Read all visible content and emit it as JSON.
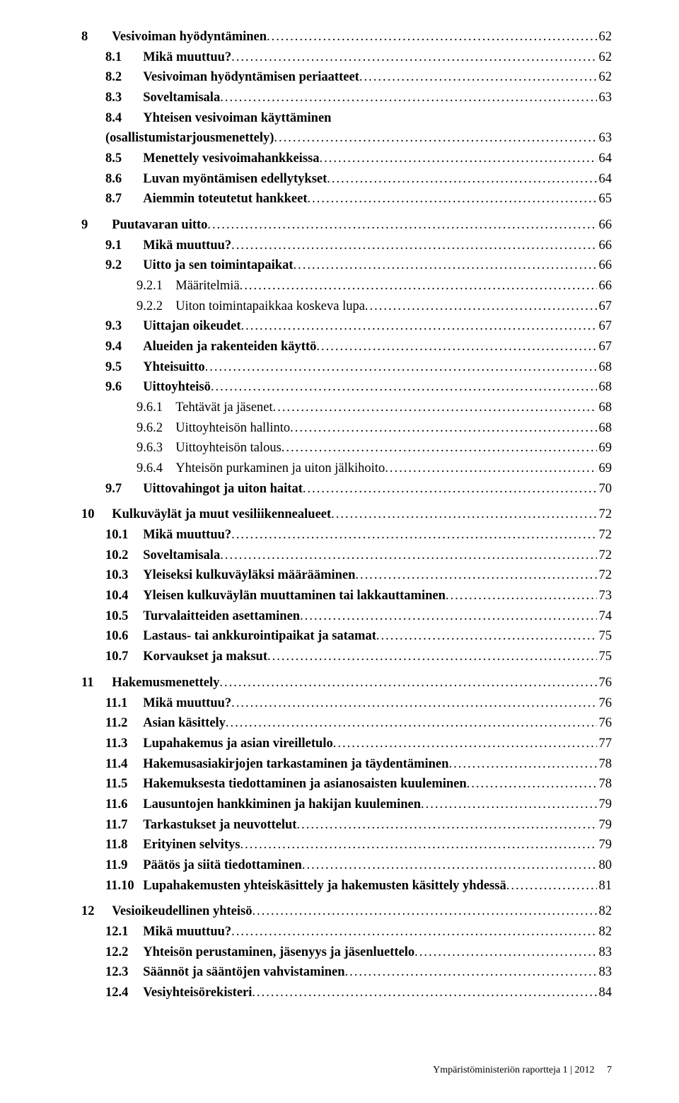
{
  "colors": {
    "text": "#000000",
    "background": "#ffffff"
  },
  "typography": {
    "font_family": "Palatino / Book Antiqua (serif)",
    "body_size_pt": 14,
    "footer_size_pt": 10
  },
  "leader_char": ".",
  "toc": [
    {
      "level": 1,
      "num": "8",
      "title": "Vesivoiman hyödyntäminen",
      "page": "62",
      "first": true
    },
    {
      "level": 2,
      "num": "8.1",
      "title": "Mikä muuttuu?",
      "page": "62"
    },
    {
      "level": 2,
      "num": "8.2",
      "title": "Vesivoiman hyödyntämisen periaatteet",
      "page": "62"
    },
    {
      "level": 2,
      "num": "8.3",
      "title": "Soveltamisala",
      "page": "63"
    },
    {
      "level": 2,
      "num": "8.4",
      "title": "Yhteisen vesivoiman käyttäminen",
      "page": ""
    },
    {
      "level": "cont",
      "num": "",
      "title": "(osallistumistarjousmenettely)",
      "page": "63"
    },
    {
      "level": 2,
      "num": "8.5",
      "title": "Menettely vesivoimahankkeissa",
      "page": "64"
    },
    {
      "level": 2,
      "num": "8.6",
      "title": "Luvan myöntämisen edellytykset",
      "page": "64"
    },
    {
      "level": 2,
      "num": "8.7",
      "title": "Aiemmin toteutetut hankkeet",
      "page": "65"
    },
    {
      "level": 1,
      "num": "9",
      "title": "Puutavaran uitto",
      "page": "66"
    },
    {
      "level": 2,
      "num": "9.1",
      "title": "Mikä muuttuu?",
      "page": "66"
    },
    {
      "level": 2,
      "num": "9.2",
      "title": "Uitto ja sen toimintapaikat",
      "page": "66"
    },
    {
      "level": 3,
      "num": "9.2.1",
      "title": "Määritelmiä",
      "page": "66"
    },
    {
      "level": 3,
      "num": "9.2.2",
      "title": "Uiton toimintapaikkaa koskeva lupa",
      "page": "67"
    },
    {
      "level": 2,
      "num": "9.3",
      "title": "Uittajan oikeudet",
      "page": "67"
    },
    {
      "level": 2,
      "num": "9.4",
      "title": "Alueiden ja rakenteiden käyttö",
      "page": "67"
    },
    {
      "level": 2,
      "num": "9.5",
      "title": "Yhteisuitto",
      "page": "68"
    },
    {
      "level": 2,
      "num": "9.6",
      "title": "Uittoyhteisö",
      "page": "68"
    },
    {
      "level": 3,
      "num": "9.6.1",
      "title": "Tehtävät ja jäsenet",
      "page": "68"
    },
    {
      "level": 3,
      "num": "9.6.2",
      "title": "Uittoyhteisön hallinto",
      "page": "68"
    },
    {
      "level": 3,
      "num": "9.6.3",
      "title": "Uittoyhteisön talous",
      "page": "69"
    },
    {
      "level": 3,
      "num": "9.6.4",
      "title": "Yhteisön purkaminen ja uiton jälkihoito",
      "page": "69"
    },
    {
      "level": 2,
      "num": "9.7",
      "title": "Uittovahingot ja uiton haitat",
      "page": "70"
    },
    {
      "level": 1,
      "num": "10",
      "title": "Kulkuväylät ja muut vesiliikennealueet",
      "page": "72"
    },
    {
      "level": 2,
      "num": "10.1",
      "title": "Mikä muuttuu?",
      "page": "72"
    },
    {
      "level": 2,
      "num": "10.2",
      "title": "Soveltamisala",
      "page": "72"
    },
    {
      "level": 2,
      "num": "10.3",
      "title": "Yleiseksi kulkuväyläksi määrääminen",
      "page": "72"
    },
    {
      "level": 2,
      "num": "10.4",
      "title": "Yleisen kulkuväylän muuttaminen tai lakkauttaminen",
      "page": "73"
    },
    {
      "level": 2,
      "num": "10.5",
      "title": "Turvalaitteiden asettaminen",
      "page": "74"
    },
    {
      "level": 2,
      "num": "10.6",
      "title": "Lastaus- tai ankkurointipaikat ja satamat",
      "page": "75"
    },
    {
      "level": 2,
      "num": "10.7",
      "title": "Korvaukset ja maksut",
      "page": "75"
    },
    {
      "level": 1,
      "num": "11",
      "title": "Hakemusmenettely",
      "page": "76"
    },
    {
      "level": 2,
      "num": "11.1",
      "title": "Mikä muuttuu?",
      "page": "76"
    },
    {
      "level": 2,
      "num": "11.2",
      "title": "Asian käsittely",
      "page": "76"
    },
    {
      "level": 2,
      "num": "11.3",
      "title": "Lupahakemus ja asian vireilletulo",
      "page": "77"
    },
    {
      "level": 2,
      "num": "11.4",
      "title": "Hakemusasiakirjojen tarkastaminen ja täydentäminen",
      "page": "78"
    },
    {
      "level": 2,
      "num": "11.5",
      "title": "Hakemuksesta tiedottaminen ja asianosaisten kuuleminen",
      "page": "78"
    },
    {
      "level": 2,
      "num": "11.6",
      "title": "Lausuntojen hankkiminen ja hakijan kuuleminen",
      "page": "79"
    },
    {
      "level": 2,
      "num": "11.7",
      "title": "Tarkastukset ja neuvottelut",
      "page": "79"
    },
    {
      "level": 2,
      "num": "11.8",
      "title": "Erityinen selvitys",
      "page": "79"
    },
    {
      "level": 2,
      "num": "11.9",
      "title": "Päätös ja siitä tiedottaminen",
      "page": "80"
    },
    {
      "level": 2,
      "num": "11.10",
      "title": "Lupahakemusten yhteiskäsittely ja hakemusten käsittely yhdessä",
      "page": "81"
    },
    {
      "level": 1,
      "num": "12",
      "title": "Vesioikeudellinen yhteisö",
      "page": "82"
    },
    {
      "level": 2,
      "num": "12.1",
      "title": "Mikä muuttuu?",
      "page": "82"
    },
    {
      "level": 2,
      "num": "12.2",
      "title": "Yhteisön perustaminen, jäsenyys ja jäsenluettelo",
      "page": "83"
    },
    {
      "level": 2,
      "num": "12.3",
      "title": "Säännöt ja sääntöjen vahvistaminen",
      "page": "83"
    },
    {
      "level": 2,
      "num": "12.4",
      "title": "Vesiyhteisörekisteri",
      "page": "84"
    }
  ],
  "footer": {
    "text": "Ympäristöministeriön raportteja  1 | 2012",
    "page": "7"
  }
}
